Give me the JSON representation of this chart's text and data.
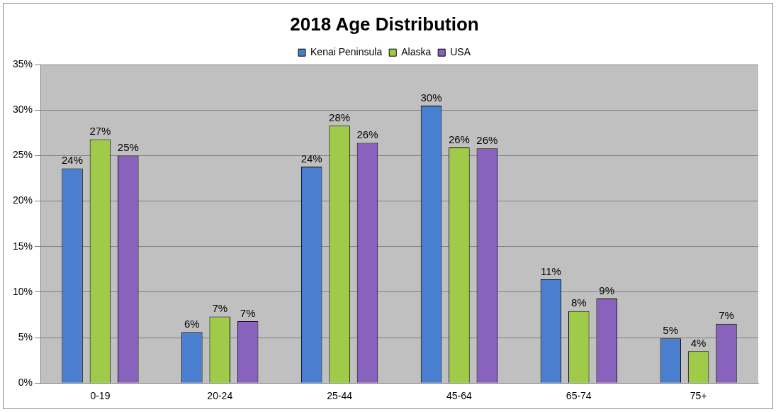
{
  "chart_data": {
    "type": "bar",
    "title": "2018 Age Distribution",
    "categories": [
      "0-19",
      "20-24",
      "25-44",
      "45-64",
      "65-74",
      "75+"
    ],
    "series": [
      {
        "name": "Kenai Peninsula",
        "color": "#4a7fd0",
        "values": [
          23.6,
          5.6,
          23.8,
          30.5,
          11.4,
          4.9
        ],
        "value_labels": [
          "24%",
          "6%",
          "24%",
          "30%",
          "11%",
          "5%"
        ]
      },
      {
        "name": "Alaska",
        "color": "#9fcb48",
        "values": [
          26.8,
          7.3,
          28.3,
          25.9,
          7.9,
          3.5
        ],
        "value_labels": [
          "27%",
          "7%",
          "28%",
          "26%",
          "8%",
          "4%"
        ]
      },
      {
        "name": "USA",
        "color": "#8862bd",
        "values": [
          25.0,
          6.8,
          26.4,
          25.8,
          9.3,
          6.5
        ],
        "value_labels": [
          "25%",
          "7%",
          "26%",
          "26%",
          "9%",
          "7%"
        ]
      }
    ],
    "ylim": [
      0,
      35
    ],
    "yticks": [
      {
        "value": 0,
        "label": "0%"
      },
      {
        "value": 5,
        "label": "5%"
      },
      {
        "value": 10,
        "label": "10%"
      },
      {
        "value": 15,
        "label": "15%"
      },
      {
        "value": 20,
        "label": "20%"
      },
      {
        "value": 25,
        "label": "25%"
      },
      {
        "value": 30,
        "label": "30%"
      },
      {
        "value": 35,
        "label": "35%"
      }
    ],
    "grid": "y",
    "legend": "top"
  }
}
